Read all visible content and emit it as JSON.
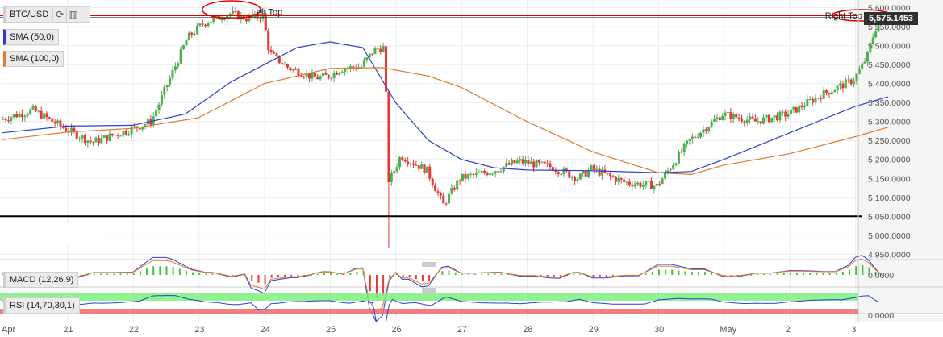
{
  "header": {
    "symbol": "BTC/USD",
    "reload_icon": "refresh-icon",
    "bars_icon": "bar-chart-icon"
  },
  "legend": {
    "sma50": "SMA (50,0)",
    "sma100": "SMA (100,0)",
    "macd": "MACD (12,26,9)",
    "rsi": "RSI (14,70,30,1)"
  },
  "price_tag": "5,575.1453",
  "colors": {
    "up": "#4caf50",
    "down": "#e53935",
    "sma50": "#2c3fd1",
    "sma100": "#e07a2f",
    "annotation": "#e00000",
    "support": "#000000",
    "rsi_band_high": "#7cf07c",
    "rsi_band_low": "#f06a6a"
  },
  "chart_data": {
    "type": "candlestick",
    "symbol": "BTC/USD",
    "y_ticks": [
      "5,600.0000",
      "5,550.0000",
      "5,500.0000",
      "5,450.0000",
      "5,400.0000",
      "5,350.0000",
      "5,300.0000",
      "5,250.0000",
      "5,200.0000",
      "5,150.0000",
      "5,100.0000",
      "5,050.0000",
      "5,000.0000",
      "4,950.0000"
    ],
    "ylim": [
      4940,
      5612
    ],
    "x_ticks": [
      "Apr",
      "21",
      "22",
      "23",
      "24",
      "25",
      "26",
      "27",
      "28",
      "29",
      "30",
      "May",
      "2",
      "3"
    ],
    "close_anchors": [
      {
        "x": 0,
        "y": 5305
      },
      {
        "x": 0.5,
        "y": 5330
      },
      {
        "x": 1,
        "y": 5280
      },
      {
        "x": 1.4,
        "y": 5245
      },
      {
        "x": 2,
        "y": 5280
      },
      {
        "x": 2.3,
        "y": 5300
      },
      {
        "x": 2.6,
        "y": 5420
      },
      {
        "x": 2.85,
        "y": 5520
      },
      {
        "x": 3.1,
        "y": 5560
      },
      {
        "x": 3.5,
        "y": 5585
      },
      {
        "x": 3.8,
        "y": 5570
      },
      {
        "x": 4.0,
        "y": 5580
      },
      {
        "x": 4.1,
        "y": 5480
      },
      {
        "x": 4.4,
        "y": 5440
      },
      {
        "x": 4.8,
        "y": 5415
      },
      {
        "x": 5.0,
        "y": 5420
      },
      {
        "x": 5.2,
        "y": 5440
      },
      {
        "x": 5.5,
        "y": 5445
      },
      {
        "x": 5.7,
        "y": 5490
      },
      {
        "x": 5.85,
        "y": 5495
      },
      {
        "x": 5.92,
        "y": 5140
      },
      {
        "x": 6.1,
        "y": 5210
      },
      {
        "x": 6.5,
        "y": 5170
      },
      {
        "x": 6.75,
        "y": 5080
      },
      {
        "x": 7.0,
        "y": 5150
      },
      {
        "x": 7.5,
        "y": 5170
      },
      {
        "x": 7.9,
        "y": 5195
      },
      {
        "x": 8.4,
        "y": 5180
      },
      {
        "x": 8.8,
        "y": 5150
      },
      {
        "x": 9.0,
        "y": 5175
      },
      {
        "x": 9.5,
        "y": 5140
      },
      {
        "x": 10.0,
        "y": 5130
      },
      {
        "x": 10.5,
        "y": 5250
      },
      {
        "x": 11.0,
        "y": 5320
      },
      {
        "x": 11.5,
        "y": 5300
      },
      {
        "x": 12.0,
        "y": 5320
      },
      {
        "x": 12.5,
        "y": 5370
      },
      {
        "x": 13.0,
        "y": 5410
      },
      {
        "x": 13.2,
        "y": 5470
      },
      {
        "x": 13.3,
        "y": 5530
      },
      {
        "x": 13.4,
        "y": 5575
      }
    ],
    "series": [
      {
        "name": "SMA (50,0)",
        "values": [
          [
            0,
            5270
          ],
          [
            1,
            5288
          ],
          [
            2,
            5290
          ],
          [
            2.8,
            5320
          ],
          [
            3.5,
            5405
          ],
          [
            4.5,
            5495
          ],
          [
            5.0,
            5510
          ],
          [
            5.5,
            5495
          ],
          [
            6.0,
            5350
          ],
          [
            6.5,
            5250
          ],
          [
            7.0,
            5200
          ],
          [
            7.5,
            5178
          ],
          [
            8.0,
            5172
          ],
          [
            9.0,
            5170
          ],
          [
            10.0,
            5165
          ],
          [
            10.5,
            5168
          ],
          [
            11.0,
            5200
          ],
          [
            12.0,
            5270
          ],
          [
            13.0,
            5340
          ],
          [
            13.5,
            5365
          ]
        ]
      },
      {
        "name": "SMA (100,0)",
        "values": [
          [
            0,
            5252
          ],
          [
            1,
            5272
          ],
          [
            2,
            5282
          ],
          [
            3,
            5310
          ],
          [
            4,
            5400
          ],
          [
            5,
            5440
          ],
          [
            5.8,
            5442
          ],
          [
            6.5,
            5420
          ],
          [
            7,
            5390
          ],
          [
            8,
            5300
          ],
          [
            9,
            5220
          ],
          [
            10,
            5165
          ],
          [
            10.5,
            5160
          ],
          [
            11,
            5185
          ],
          [
            12,
            5215
          ],
          [
            13,
            5260
          ],
          [
            13.5,
            5285
          ]
        ]
      }
    ],
    "hlines": [
      {
        "y": 5580,
        "label": ""
      },
      {
        "y": 5050,
        "label": ""
      }
    ],
    "annotations": [
      {
        "text": "Left Top",
        "x": 3.8,
        "y": 5590
      },
      {
        "text": "Right Top",
        "x": 13.35,
        "y": 5580
      }
    ],
    "indicators": {
      "macd_tick": "0.0000",
      "rsi_tick": "0.0000"
    }
  }
}
